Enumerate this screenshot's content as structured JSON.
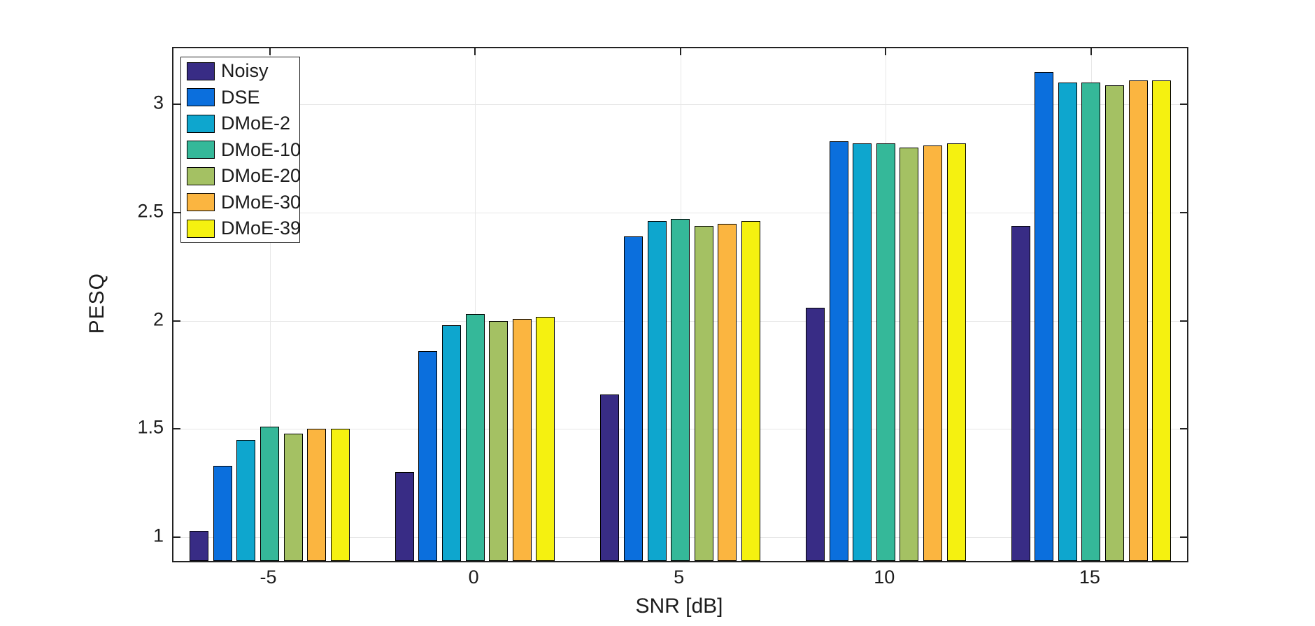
{
  "chart_data": {
    "type": "bar",
    "title": "",
    "xlabel": "SNR [dB]",
    "ylabel": "PESQ",
    "categories": [
      "-5",
      "0",
      "5",
      "10",
      "15"
    ],
    "series": [
      {
        "name": "Noisy",
        "color": "#382c85",
        "values": [
          1.03,
          1.3,
          1.66,
          2.06,
          2.44
        ]
      },
      {
        "name": "DSE",
        "color": "#0b6fdd",
        "values": [
          1.33,
          1.86,
          2.39,
          2.83,
          3.15
        ]
      },
      {
        "name": "DMoE-2",
        "color": "#0ea6ce",
        "values": [
          1.45,
          1.98,
          2.46,
          2.82,
          3.1
        ]
      },
      {
        "name": "DMoE-10",
        "color": "#35b899",
        "values": [
          1.51,
          2.03,
          2.47,
          2.82,
          3.1
        ]
      },
      {
        "name": "DMoE-20",
        "color": "#a4c163",
        "values": [
          1.48,
          2.0,
          2.44,
          2.8,
          3.09
        ]
      },
      {
        "name": "DMoE-30",
        "color": "#fbb540",
        "values": [
          1.5,
          2.01,
          2.45,
          2.81,
          3.11
        ]
      },
      {
        "name": "DMoE-39",
        "color": "#f5f110",
        "values": [
          1.5,
          2.02,
          2.46,
          2.82,
          3.11
        ]
      }
    ],
    "yticks": [
      1,
      1.5,
      2,
      2.5,
      3
    ],
    "ytick_labels": [
      "1",
      "1.5",
      "2",
      "2.5",
      "3"
    ],
    "ylim": [
      0.89,
      3.26
    ],
    "grid": true,
    "legend_position": "top-left",
    "axis_color": "#222222",
    "grid_color": "#e7e7e7",
    "bar_edge_color": "#000000",
    "background": "#ffffff"
  }
}
